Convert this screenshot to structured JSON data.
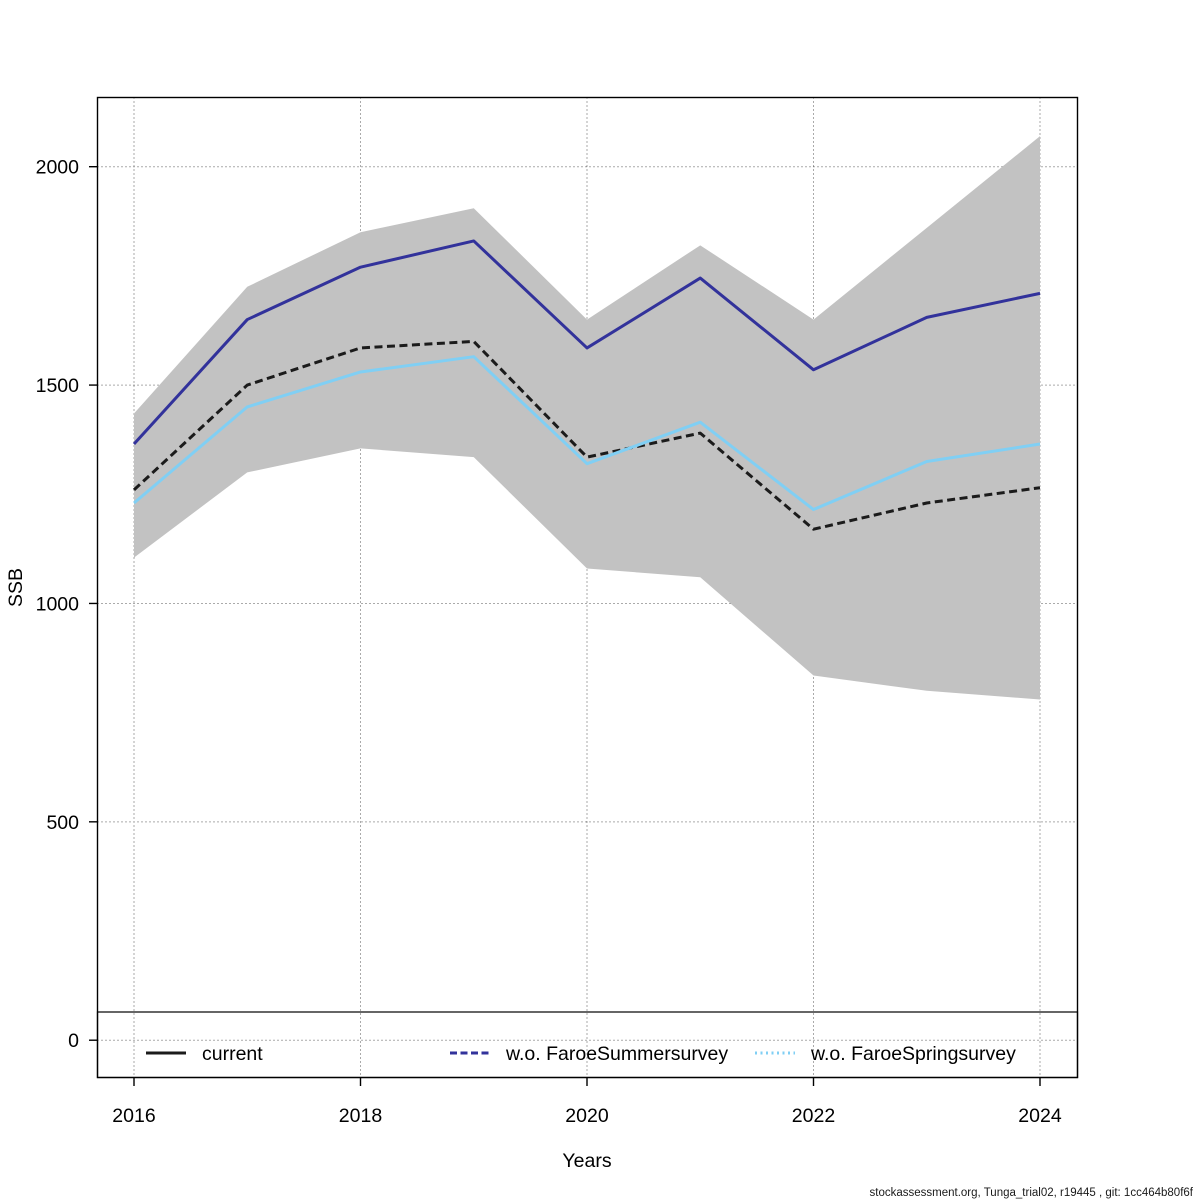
{
  "chart_data": {
    "type": "line",
    "title": "",
    "xlabel": "Years",
    "ylabel": "SSB",
    "x": [
      2016,
      2017,
      2018,
      2019,
      2020,
      2021,
      2022,
      2023,
      2024
    ],
    "x_ticks": [
      2016,
      2018,
      2020,
      2022,
      2024
    ],
    "y_ticks": [
      0,
      500,
      1000,
      1500,
      2000
    ],
    "xlim": [
      2016,
      2024
    ],
    "ylim": [
      0,
      2150
    ],
    "grid": "dotted",
    "legend_position": "bottom-inside",
    "series": [
      {
        "name": "current",
        "color": "#1B1B1B",
        "plot_style": "dashed",
        "legend_style": "solid",
        "values": [
          1260,
          1500,
          1585,
          1600,
          1335,
          1390,
          1170,
          1230,
          1265
        ]
      },
      {
        "name": "w.o. FaroeSummersurvey",
        "color": "#32329B",
        "plot_style": "solid",
        "legend_style": "dashed",
        "values": [
          1365,
          1650,
          1770,
          1830,
          1585,
          1745,
          1535,
          1655,
          1710
        ]
      },
      {
        "name": "w.o. FaroeSpringsurvey",
        "color": "#80CFF4",
        "plot_style": "solid",
        "legend_style": "dotted",
        "values": [
          1230,
          1450,
          1530,
          1565,
          1320,
          1415,
          1215,
          1325,
          1365
        ]
      }
    ],
    "confidence_band": {
      "series": "current",
      "color": "#C2C2C2",
      "upper": [
        1435,
        1725,
        1850,
        1905,
        1650,
        1820,
        1650,
        1860,
        2070
      ],
      "lower": [
        1105,
        1300,
        1355,
        1335,
        1080,
        1060,
        835,
        800,
        780
      ]
    }
  },
  "footer": {
    "text": "stockassessment.org, Tunga_trial02, r19445 , git: 1cc464b80f6f"
  }
}
